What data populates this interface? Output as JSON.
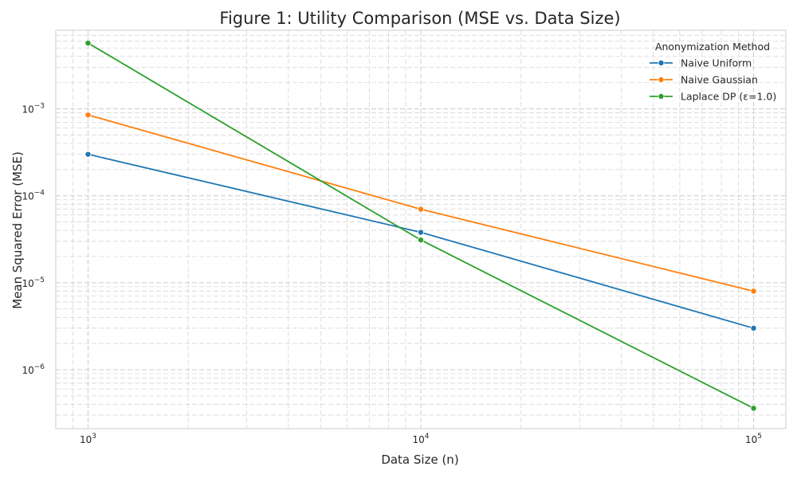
{
  "chart_data": {
    "type": "line",
    "title": "Figure 1: Utility Comparison (MSE vs. Data Size)",
    "xlabel": "Data Size (n)",
    "ylabel": "Mean Squared Error (MSE)",
    "xscale": "log",
    "yscale": "log",
    "xlim": [
      800,
      125000
    ],
    "ylim": [
      2.1e-07,
      0.008
    ],
    "grid": true,
    "legend": {
      "title": "Anonymization Method",
      "placement": "top-right"
    },
    "x": [
      1000,
      10000,
      100000
    ],
    "x_ticks": [
      {
        "base": "10",
        "exp": "3"
      },
      {
        "base": "10",
        "exp": "4"
      },
      {
        "base": "10",
        "exp": "5"
      }
    ],
    "y_ticks": [
      {
        "base": "10",
        "exp": "−3"
      },
      {
        "base": "10",
        "exp": "−4"
      },
      {
        "base": "10",
        "exp": "−5"
      },
      {
        "base": "10",
        "exp": "−6"
      }
    ],
    "series": [
      {
        "name": "Naive Uniform",
        "color": "#1f77b4",
        "values": [
          0.0003,
          3.8e-05,
          3e-06
        ]
      },
      {
        "name": "Naive Gaussian",
        "color": "#ff7f0e",
        "values": [
          0.00085,
          7e-05,
          8e-06
        ]
      },
      {
        "name": "Laplace DP (ε=1.0)",
        "color": "#2ca02c",
        "values": [
          0.0057,
          3.1e-05,
          3.6e-07
        ]
      }
    ]
  }
}
